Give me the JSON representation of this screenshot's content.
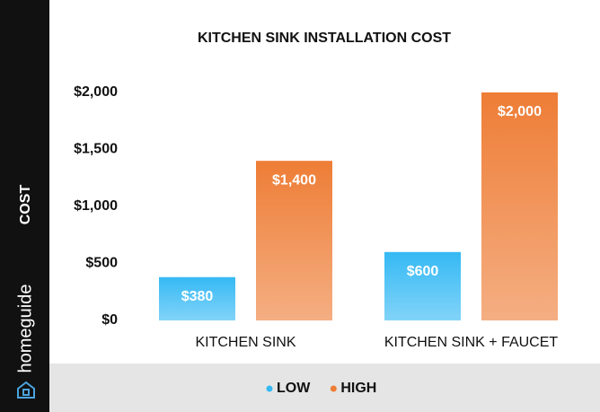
{
  "chart_data": {
    "type": "bar",
    "title": "KITCHEN SINK INSTALLATION COST",
    "y_label": "COST",
    "brand": "homeguide",
    "categories": [
      "KITCHEN SINK",
      "KITCHEN SINK + FAUCET"
    ],
    "series": [
      {
        "name": "LOW",
        "color": "#35b9f4",
        "values": [
          380,
          600
        ],
        "value_labels": [
          "$380",
          "$600"
        ]
      },
      {
        "name": "HIGH",
        "color": "#ee7d36",
        "values": [
          1400,
          2000
        ],
        "value_labels": [
          "$1,400",
          "$2,000"
        ]
      }
    ],
    "ylim": [
      0,
      2000
    ],
    "yticks": [
      {
        "value": 0,
        "label": "$0"
      },
      {
        "value": 500,
        "label": "$500"
      },
      {
        "value": 1000,
        "label": "$1,000"
      },
      {
        "value": 1500,
        "label": "$1,500"
      },
      {
        "value": 2000,
        "label": "$2,000"
      }
    ],
    "grid": false,
    "legend": "bottom"
  }
}
